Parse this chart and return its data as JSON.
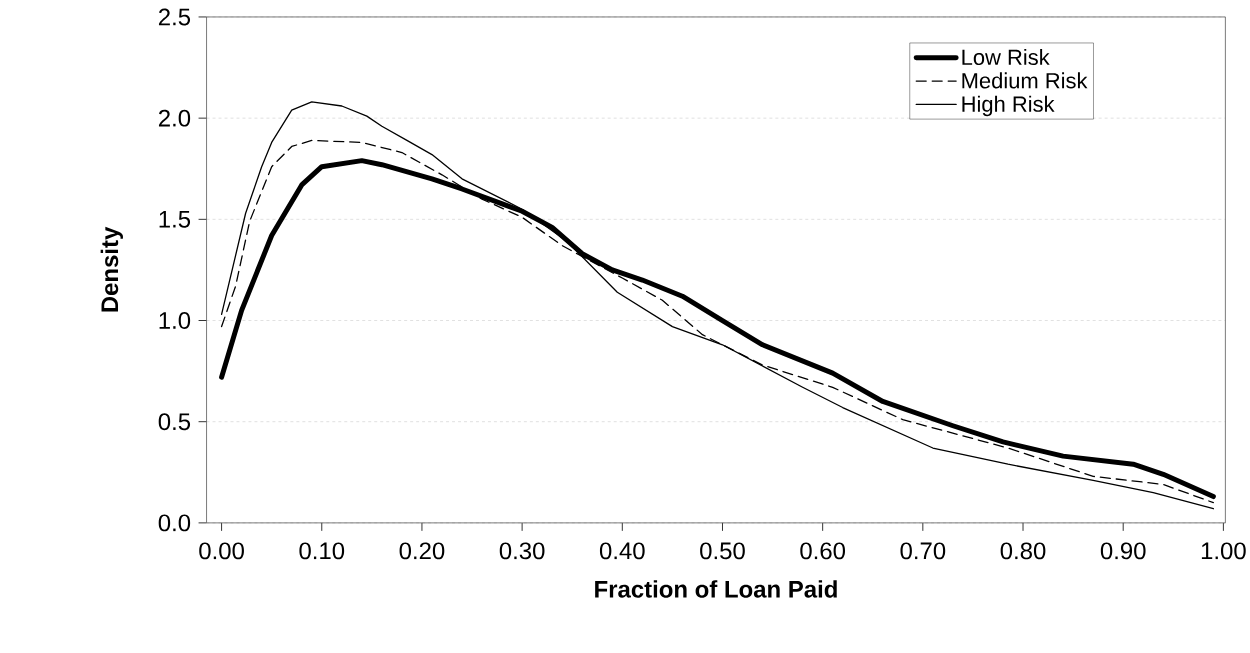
{
  "chart_data": {
    "type": "line",
    "xlabel": "Fraction of Loan Paid",
    "ylabel": "Density",
    "xlim": [
      -0.015,
      1.002
    ],
    "ylim": [
      0,
      2.5
    ],
    "xticks": [
      {
        "value": 0,
        "label": "0.00"
      },
      {
        "value": 0.1,
        "label": "0.10"
      },
      {
        "value": 0.2,
        "label": "0.20"
      },
      {
        "value": 0.3,
        "label": "0.30"
      },
      {
        "value": 0.4,
        "label": "0.40"
      },
      {
        "value": 0.5,
        "label": "0.50"
      },
      {
        "value": 0.6,
        "label": "0.60"
      },
      {
        "value": 0.7,
        "label": "0.70"
      },
      {
        "value": 0.8,
        "label": "0.80"
      },
      {
        "value": 0.9,
        "label": "0.90"
      },
      {
        "value": 1,
        "label": "1.00"
      }
    ],
    "yticks": [
      {
        "value": 0,
        "label": "0.0"
      },
      {
        "value": 0.5,
        "label": "0.5"
      },
      {
        "value": 1,
        "label": "1.0"
      },
      {
        "value": 1.5,
        "label": "1.5"
      },
      {
        "value": 2,
        "label": "2.0"
      },
      {
        "value": 2.5,
        "label": "2.5"
      }
    ],
    "grid": "y",
    "legend": "top right",
    "marker": "none",
    "series": [
      {
        "name": "Low Risk",
        "color": "#000000",
        "line_style": "solid",
        "x": [
          0.0,
          0.02,
          0.05,
          0.08,
          0.1,
          0.14,
          0.16,
          0.21,
          0.24,
          0.3,
          0.33,
          0.36,
          0.39,
          0.42,
          0.46,
          0.5,
          0.54,
          0.61,
          0.66,
          0.73,
          0.78,
          0.84,
          0.91,
          0.94,
          0.99
        ],
        "values": [
          0.72,
          1.05,
          1.42,
          1.67,
          1.76,
          1.79,
          1.77,
          1.7,
          1.65,
          1.54,
          1.46,
          1.33,
          1.25,
          1.2,
          1.12,
          1.0,
          0.88,
          0.74,
          0.6,
          0.48,
          0.4,
          0.33,
          0.29,
          0.24,
          0.13
        ]
      },
      {
        "name": "Medium Risk",
        "color": "#000000",
        "line_style": "dashed",
        "x": [
          0.0,
          0.014,
          0.028,
          0.05,
          0.07,
          0.09,
          0.14,
          0.18,
          0.22,
          0.26,
          0.3,
          0.34,
          0.4,
          0.44,
          0.48,
          0.54,
          0.61,
          0.68,
          0.785,
          0.87,
          0.94,
          0.99
        ],
        "values": [
          0.97,
          1.17,
          1.49,
          1.76,
          1.86,
          1.89,
          1.88,
          1.83,
          1.72,
          1.6,
          1.51,
          1.37,
          1.21,
          1.1,
          0.93,
          0.78,
          0.67,
          0.51,
          0.37,
          0.23,
          0.19,
          0.1
        ]
      },
      {
        "name": "High Risk",
        "color": "#000000",
        "line_style": "solid",
        "x": [
          0.0,
          0.024,
          0.04,
          0.05,
          0.07,
          0.09,
          0.12,
          0.145,
          0.16,
          0.185,
          0.21,
          0.24,
          0.3,
          0.345,
          0.395,
          0.45,
          0.5,
          0.58,
          0.62,
          0.71,
          0.785,
          0.87,
          0.93,
          0.99
        ],
        "values": [
          1.03,
          1.53,
          1.76,
          1.88,
          2.04,
          2.08,
          2.06,
          2.01,
          1.96,
          1.89,
          1.82,
          1.7,
          1.55,
          1.39,
          1.14,
          0.97,
          0.88,
          0.67,
          0.57,
          0.37,
          0.29,
          0.21,
          0.15,
          0.07
        ]
      }
    ]
  }
}
